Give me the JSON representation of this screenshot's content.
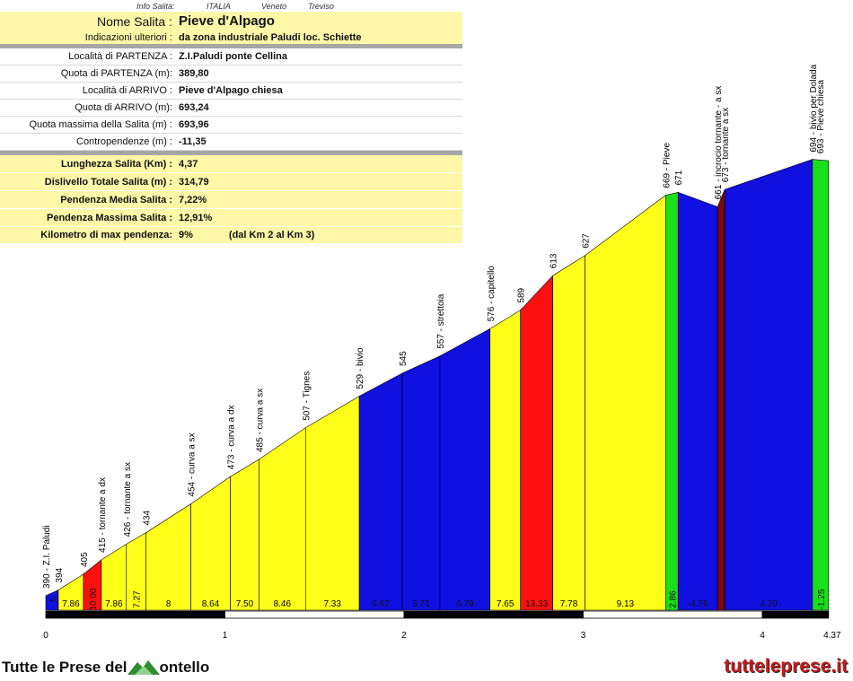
{
  "info_header": {
    "label": "Info Salita:",
    "country": "ITALIA",
    "region": "Veneto",
    "province": "Treviso"
  },
  "info_rows": [
    {
      "label": "Nome Salita :",
      "value": "Pieve d'Alpago"
    },
    {
      "label": "Indicazioni ulteriori :",
      "value": "da zona industriale Paludi loc. Schiette"
    },
    {
      "label": "Località di PARTENZA :",
      "value": "Z.I.Paludi ponte Cellina"
    },
    {
      "label": "Quota di PARTENZA (m):",
      "value": "389,80"
    },
    {
      "label": "Località di ARRIVO :",
      "value": "Pieve d'Alpago chiesa"
    },
    {
      "label": "Quota di ARRIVO (m):",
      "value": "693,24"
    },
    {
      "label": "Quota massima della Salita (m) :",
      "value": "693,96"
    },
    {
      "label": "Contropendenze (m) :",
      "value": "-11,35"
    },
    {
      "label": "Lunghezza Salita (Km) :",
      "value": "4,37"
    },
    {
      "label": "Dislivello Totale Salita (m) :",
      "value": "314,79"
    },
    {
      "label": "Pendenza Media Salita :",
      "value": "7,22%"
    },
    {
      "label": "Pendenza Massima Salita :",
      "value": "12,91%"
    },
    {
      "label": "Kilometro di max pendenza:",
      "value": "9%",
      "extra": "(dal Km 2 al Km 3)"
    }
  ],
  "chart_data": {
    "type": "area",
    "title": "",
    "xlabel": "",
    "ylabel": "",
    "xlim": [
      0,
      4.37
    ],
    "ylim": [
      380,
      700
    ],
    "x_ticks": [
      "0",
      "1",
      "2",
      "3",
      "4",
      "4.37"
    ],
    "x_tick_values": [
      0,
      1,
      2,
      3,
      4,
      4.37
    ],
    "points": [
      {
        "x": 0.0,
        "y": 390,
        "label": "390 - Z.I. Paludi"
      },
      {
        "x": 0.07,
        "y": 394,
        "label": "394"
      },
      {
        "x": 0.21,
        "y": 405,
        "label": "405"
      },
      {
        "x": 0.31,
        "y": 415,
        "label": "415 - tornante a dx"
      },
      {
        "x": 0.45,
        "y": 426,
        "label": "426 - tornante a sx"
      },
      {
        "x": 0.56,
        "y": 434,
        "label": "434"
      },
      {
        "x": 0.81,
        "y": 454,
        "label": "454 - curva a sx"
      },
      {
        "x": 1.03,
        "y": 473,
        "label": "473 - curva a dx"
      },
      {
        "x": 1.19,
        "y": 485,
        "label": "485 - curva a sx"
      },
      {
        "x": 1.45,
        "y": 507,
        "label": "507 - Tignes"
      },
      {
        "x": 1.75,
        "y": 529,
        "label": "529 - bivio"
      },
      {
        "x": 1.99,
        "y": 545,
        "label": "545"
      },
      {
        "x": 2.2,
        "y": 557,
        "label": "557 - strettoia"
      },
      {
        "x": 2.48,
        "y": 576,
        "label": "576 - capitello"
      },
      {
        "x": 2.65,
        "y": 589,
        "label": "589"
      },
      {
        "x": 2.83,
        "y": 613,
        "label": "613"
      },
      {
        "x": 3.01,
        "y": 627,
        "label": "627"
      },
      {
        "x": 3.46,
        "y": 669,
        "label": "669 - Pieve"
      },
      {
        "x": 3.53,
        "y": 671,
        "label": "671"
      },
      {
        "x": 3.75,
        "y": 661,
        "label": "661 - incrocio tornante - a sx"
      },
      {
        "x": 3.79,
        "y": 673,
        "label": "673 - tornante a sx"
      },
      {
        "x": 4.28,
        "y": 694,
        "label": "694 - bivio per Dolada"
      },
      {
        "x": 4.37,
        "y": 693,
        "label": "693 - Pieve chiesa"
      }
    ],
    "segments": [
      {
        "grade": "5",
        "color": "#1010e0"
      },
      {
        "grade": "7.86",
        "color": "#ffff1a"
      },
      {
        "grade": "10.00",
        "color": "#ff1010"
      },
      {
        "grade": "7.86",
        "color": "#ffff1a"
      },
      {
        "grade": "7.27",
        "color": "#ffff1a"
      },
      {
        "grade": "8",
        "color": "#ffff1a"
      },
      {
        "grade": "8.64",
        "color": "#ffff1a"
      },
      {
        "grade": "7.50",
        "color": "#ffff1a"
      },
      {
        "grade": "8.46",
        "color": "#ffff1a"
      },
      {
        "grade": "7.33",
        "color": "#ffff1a"
      },
      {
        "grade": "6.67",
        "color": "#1010e0"
      },
      {
        "grade": "5.71",
        "color": "#1010e0"
      },
      {
        "grade": "6.79",
        "color": "#1010e0"
      },
      {
        "grade": "7.65",
        "color": "#ffff1a"
      },
      {
        "grade": "13.33",
        "color": "#ff1010"
      },
      {
        "grade": "7.78",
        "color": "#ffff1a"
      },
      {
        "grade": "9.13",
        "color": "#ffff1a"
      },
      {
        "grade": "2.86",
        "color": "#1ae01a"
      },
      {
        "grade": "-4.76",
        "color": "#1010e0"
      },
      {
        "grade": "",
        "color": "#7a0b0b"
      },
      {
        "grade": "4.20",
        "color": "#1010e0"
      },
      {
        "grade": "-1.25",
        "color": "#1ae01a"
      }
    ]
  },
  "footer": {
    "left_text": "Tutte le Prese del",
    "left_text_end": "ontello",
    "right_text": "tutteleprese.it"
  }
}
